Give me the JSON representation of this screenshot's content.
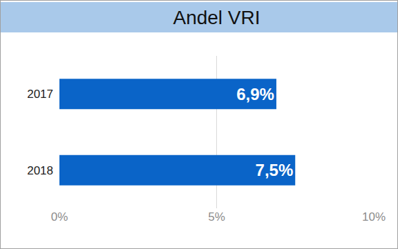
{
  "chart_data": {
    "type": "bar",
    "title": "Andel VRI",
    "orientation": "horizontal",
    "categories": [
      "2017",
      "2018"
    ],
    "values": [
      6.9,
      7.5
    ],
    "value_labels": [
      "6,9%",
      "7,5%"
    ],
    "data_labels": true,
    "color": "#0a64c8",
    "xlim": [
      0,
      10
    ],
    "xticks": [
      {
        "value": 0,
        "label": "0%"
      },
      {
        "value": 5,
        "label": "5%"
      },
      {
        "value": 10,
        "label": "10%"
      }
    ],
    "grid": true
  }
}
